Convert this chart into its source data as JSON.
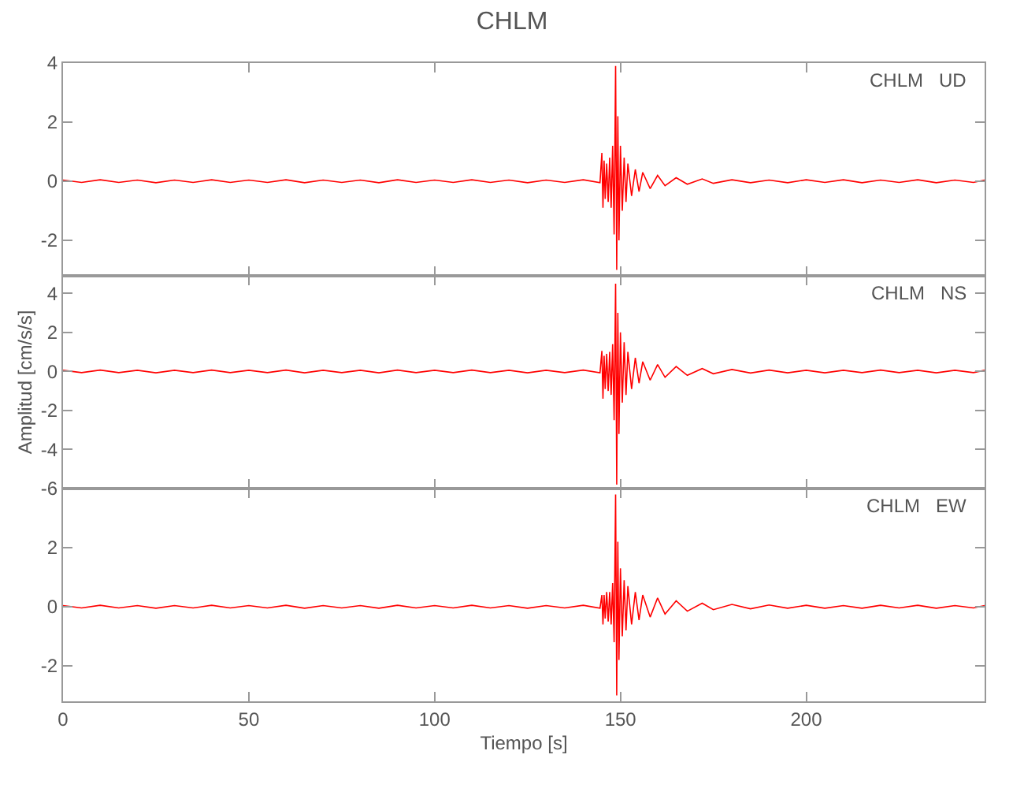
{
  "chart_data": [
    {
      "type": "line",
      "title": "CHLM",
      "annotations": [
        "CHLM   UD"
      ],
      "xlim": [
        0,
        248
      ],
      "xticks": [
        0,
        50,
        100,
        150,
        200
      ],
      "ylim": [
        -3.2,
        4
      ],
      "yticks": [
        -2,
        0,
        2,
        4
      ],
      "tick_labels": "y",
      "series": [
        {
          "color": "#ff0000",
          "x": [
            0,
            5,
            10,
            15,
            20,
            25,
            30,
            35,
            40,
            45,
            50,
            55,
            60,
            65,
            70,
            75,
            80,
            85,
            90,
            95,
            100,
            105,
            110,
            115,
            120,
            125,
            130,
            135,
            140,
            144.5,
            145,
            145.3,
            145.6,
            145.9,
            146.3,
            146.7,
            147.1,
            147.5,
            147.9,
            148.3,
            148.7,
            149,
            149.3,
            149.6,
            150,
            150.5,
            151,
            151.5,
            152,
            153,
            154,
            155,
            156,
            158,
            160,
            162,
            165,
            168,
            172,
            175,
            180,
            185,
            190,
            195,
            200,
            205,
            210,
            215,
            220,
            225,
            230,
            235,
            240,
            245,
            248
          ],
          "values": [
            0.04,
            -0.04,
            0.05,
            -0.04,
            0.04,
            -0.05,
            0.04,
            -0.04,
            0.05,
            -0.04,
            0.04,
            -0.04,
            0.05,
            -0.05,
            0.04,
            -0.04,
            0.04,
            -0.05,
            0.05,
            -0.04,
            0.04,
            -0.04,
            0.05,
            -0.04,
            0.04,
            -0.05,
            0.04,
            -0.04,
            0.05,
            -0.05,
            0.96,
            -0.9,
            0.7,
            -0.6,
            0.6,
            -0.7,
            0.8,
            -0.9,
            1.2,
            -1.8,
            3.9,
            -3,
            2.2,
            -2,
            1.2,
            -1,
            0.8,
            -0.7,
            0.6,
            -0.5,
            0.4,
            -0.35,
            0.3,
            -0.25,
            0.2,
            -0.15,
            0.12,
            -0.1,
            0.08,
            -0.07,
            0.05,
            -0.05,
            0.04,
            -0.05,
            0.05,
            -0.04,
            0.05,
            -0.05,
            0.04,
            -0.04,
            0.05,
            -0.05,
            0.04,
            -0.04,
            0.04
          ]
        }
      ]
    },
    {
      "type": "line",
      "ylabel": "Amplitud [cm/s/s]",
      "annotations": [
        "CHLM   NS"
      ],
      "xlim": [
        0,
        248
      ],
      "xticks": [
        0,
        50,
        100,
        150,
        200
      ],
      "ylim": [
        -6,
        4.9
      ],
      "yticks": [
        -6,
        -4,
        -2,
        0,
        2,
        4
      ],
      "tick_labels": "y",
      "series": [
        {
          "color": "#ff0000",
          "x": [
            0,
            5,
            10,
            15,
            20,
            25,
            30,
            35,
            40,
            45,
            50,
            55,
            60,
            65,
            70,
            75,
            80,
            85,
            90,
            95,
            100,
            105,
            110,
            115,
            120,
            125,
            130,
            135,
            140,
            144.5,
            145,
            145.3,
            145.6,
            145.9,
            146.3,
            146.7,
            147.1,
            147.5,
            147.9,
            148.3,
            148.7,
            149,
            149.3,
            149.6,
            150,
            150.5,
            151,
            151.5,
            152,
            153,
            154,
            155,
            156,
            158,
            160,
            162,
            165,
            168,
            172,
            175,
            180,
            185,
            190,
            195,
            200,
            205,
            210,
            215,
            220,
            225,
            230,
            235,
            240,
            245,
            248
          ],
          "values": [
            0.06,
            -0.06,
            0.07,
            -0.06,
            0.06,
            -0.07,
            0.06,
            -0.06,
            0.07,
            -0.06,
            0.06,
            -0.06,
            0.07,
            -0.07,
            0.06,
            -0.06,
            0.06,
            -0.07,
            0.07,
            -0.06,
            0.06,
            -0.06,
            0.07,
            -0.06,
            0.06,
            -0.07,
            0.06,
            -0.06,
            0.07,
            -0.07,
            1.05,
            -1.4,
            0.8,
            -0.9,
            0.9,
            -1,
            1,
            -1.2,
            1.4,
            -2.5,
            4.5,
            -5.8,
            3,
            -3.2,
            2,
            -1.6,
            1.5,
            -1.2,
            1,
            -0.9,
            0.7,
            -0.6,
            0.5,
            -0.45,
            0.35,
            -0.3,
            0.25,
            -0.2,
            0.15,
            -0.12,
            0.1,
            -0.08,
            0.07,
            -0.07,
            0.06,
            -0.07,
            0.06,
            -0.06,
            0.07,
            -0.06,
            0.06,
            -0.07,
            0.06,
            -0.06,
            0.06
          ]
        }
      ]
    },
    {
      "type": "line",
      "xlabel": "Tiempo [s]",
      "annotations": [
        "CHLM   EW"
      ],
      "xlim": [
        0,
        248
      ],
      "xticks": [
        0,
        50,
        100,
        150,
        200
      ],
      "ylim": [
        -3.2,
        4
      ],
      "yticks": [
        -2,
        0,
        2
      ],
      "series": [
        {
          "color": "#ff0000",
          "x": [
            0,
            5,
            10,
            15,
            20,
            25,
            30,
            35,
            40,
            45,
            50,
            55,
            60,
            65,
            70,
            75,
            80,
            85,
            90,
            95,
            100,
            105,
            110,
            115,
            120,
            125,
            130,
            135,
            140,
            144.5,
            145,
            145.3,
            145.6,
            145.9,
            146.3,
            146.7,
            147.1,
            147.5,
            147.9,
            148.3,
            148.7,
            149,
            149.3,
            149.6,
            150,
            150.5,
            151,
            151.5,
            152,
            153,
            154,
            155,
            156,
            158,
            160,
            162,
            165,
            168,
            172,
            175,
            180,
            185,
            190,
            195,
            200,
            205,
            210,
            215,
            220,
            225,
            230,
            235,
            240,
            245,
            248
          ],
          "values": [
            0.04,
            -0.04,
            0.05,
            -0.04,
            0.04,
            -0.05,
            0.04,
            -0.04,
            0.05,
            -0.04,
            0.04,
            -0.04,
            0.05,
            -0.05,
            0.04,
            -0.04,
            0.04,
            -0.05,
            0.05,
            -0.04,
            0.04,
            -0.04,
            0.05,
            -0.04,
            0.04,
            -0.05,
            0.04,
            -0.04,
            0.05,
            -0.05,
            0.4,
            -0.6,
            0.4,
            -0.4,
            0.5,
            -0.5,
            0.5,
            -0.6,
            0.8,
            -1.2,
            3.8,
            -3,
            2.2,
            -1.8,
            1.3,
            -1,
            0.9,
            -0.8,
            0.7,
            -0.6,
            0.5,
            -0.45,
            0.4,
            -0.35,
            0.3,
            -0.25,
            0.2,
            -0.15,
            0.12,
            -0.1,
            0.08,
            -0.07,
            0.06,
            -0.05,
            0.05,
            -0.05,
            0.04,
            -0.05,
            0.05,
            -0.04,
            0.05,
            -0.05,
            0.04,
            -0.04,
            0.04
          ]
        }
      ]
    }
  ]
}
